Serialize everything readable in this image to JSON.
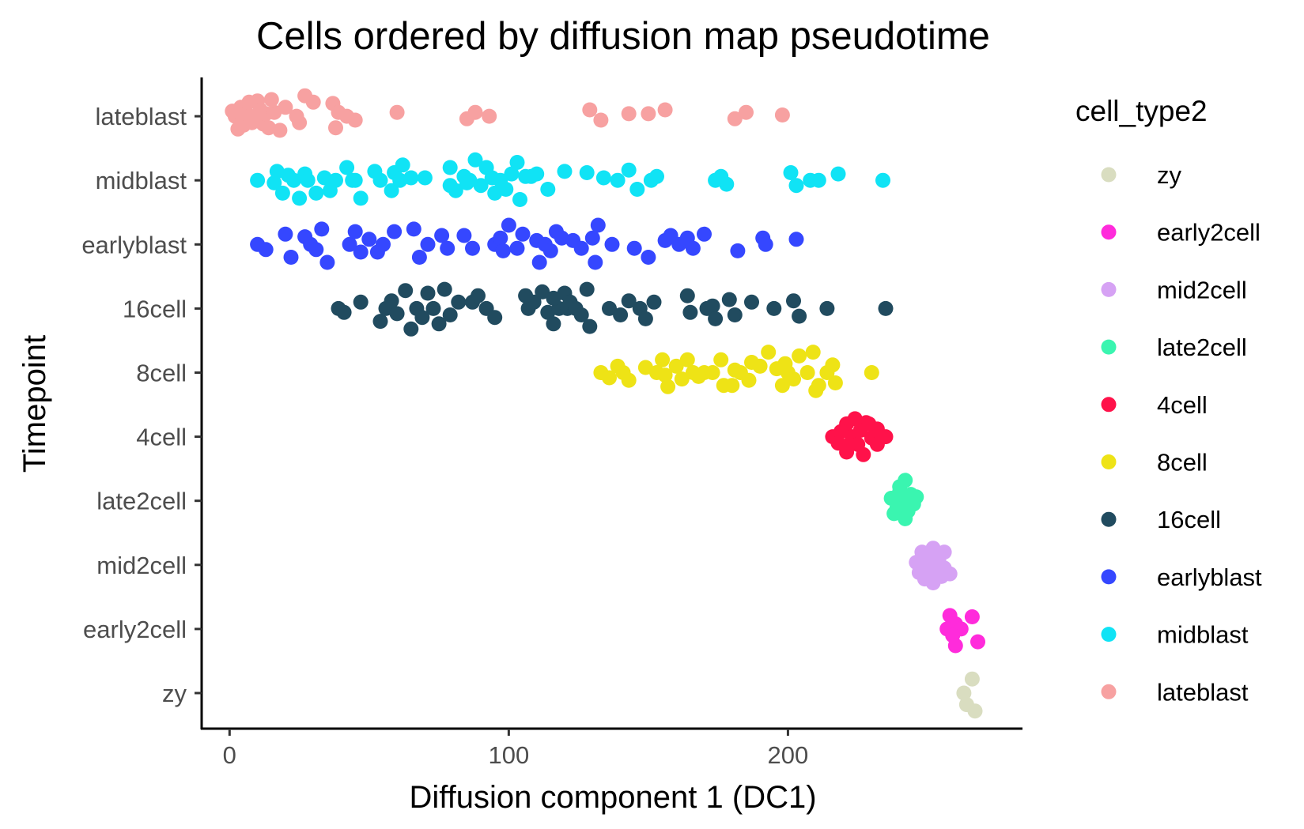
{
  "chart_data": {
    "type": "scatter",
    "title": "Cells ordered by diffusion map pseudotime",
    "xlabel": "Diffusion component 1 (DC1)",
    "ylabel": "Timepoint",
    "xlim": [
      -10,
      284
    ],
    "x_ticks": [
      0,
      100,
      200
    ],
    "categories": [
      "zy",
      "early2cell",
      "mid2cell",
      "late2cell",
      "4cell",
      "8cell",
      "16cell",
      "earlyblast",
      "midblast",
      "lateblast"
    ],
    "grid": false,
    "legend": {
      "title": "cell_type2",
      "position": "right",
      "entries": [
        "zy",
        "early2cell",
        "mid2cell",
        "late2cell",
        "4cell",
        "8cell",
        "16cell",
        "earlyblast",
        "midblast",
        "lateblast"
      ]
    },
    "series": [
      {
        "name": "zy",
        "color": "#D9DDC0",
        "category": "zy",
        "points": [
          [
            266,
            0.22
          ],
          [
            263,
            0.0
          ],
          [
            264,
            -0.18
          ],
          [
            267,
            -0.28
          ]
        ]
      },
      {
        "name": "early2cell",
        "color": "#FF2BDB",
        "category": "early2cell",
        "points": [
          [
            258,
            0.21
          ],
          [
            266,
            0.19
          ],
          [
            260,
            0.08
          ],
          [
            257,
            0.0
          ],
          [
            262,
            0.0
          ],
          [
            259,
            -0.1
          ],
          [
            268,
            -0.2
          ],
          [
            260,
            -0.26
          ]
        ]
      },
      {
        "name": "mid2cell",
        "color": "#D6A2F4",
        "category": "mid2cell",
        "points": [
          [
            248,
            0.2
          ],
          [
            252,
            0.26
          ],
          [
            256,
            0.2
          ],
          [
            250,
            0.12
          ],
          [
            254,
            0.08
          ],
          [
            246,
            0.04
          ],
          [
            249,
            0.0
          ],
          [
            253,
            -0.02
          ],
          [
            256,
            -0.05
          ],
          [
            247,
            -0.12
          ],
          [
            251,
            -0.1
          ],
          [
            255,
            -0.18
          ],
          [
            258,
            -0.14
          ],
          [
            249,
            -0.22
          ],
          [
            252,
            -0.28
          ]
        ]
      },
      {
        "name": "late2cell",
        "color": "#3AF5B0",
        "category": "late2cell",
        "points": [
          [
            242,
            0.32
          ],
          [
            240,
            0.22
          ],
          [
            244,
            0.1
          ],
          [
            237,
            0.04
          ],
          [
            241,
            0.0
          ],
          [
            245,
            -0.05
          ],
          [
            239,
            -0.12
          ],
          [
            243,
            -0.16
          ],
          [
            238,
            -0.2
          ],
          [
            242,
            -0.28
          ],
          [
            246,
            0.06
          ],
          [
            240,
            0.14
          ]
        ]
      },
      {
        "name": "4cell",
        "color": "#FF124A",
        "category": "4cell",
        "points": [
          [
            224,
            0.28
          ],
          [
            228,
            0.22
          ],
          [
            232,
            0.12
          ],
          [
            221,
            0.2
          ],
          [
            219,
            0.08
          ],
          [
            226,
            0.1
          ],
          [
            235,
            0.0
          ],
          [
            216,
            0.0
          ],
          [
            223,
            0.0
          ],
          [
            230,
            -0.02
          ],
          [
            218,
            -0.1
          ],
          [
            225,
            -0.12
          ],
          [
            232,
            -0.12
          ],
          [
            221,
            -0.24
          ],
          [
            227,
            -0.28
          ],
          [
            229,
            0.2
          ],
          [
            222,
            -0.12
          ]
        ]
      },
      {
        "name": "8cell",
        "color": "#EEE316",
        "category": "8cell",
        "points": [
          [
            133,
            0.0
          ],
          [
            136,
            -0.08
          ],
          [
            139,
            0.1
          ],
          [
            141,
            0.0
          ],
          [
            143,
            -0.12
          ],
          [
            149,
            0.08
          ],
          [
            153,
            0.0
          ],
          [
            155,
            0.2
          ],
          [
            156,
            -0.04
          ],
          [
            160,
            0.1
          ],
          [
            157,
            -0.22
          ],
          [
            162,
            -0.1
          ],
          [
            164,
            0.2
          ],
          [
            166,
            0.0
          ],
          [
            170,
            0.0
          ],
          [
            173,
            0.0
          ],
          [
            176,
            0.2
          ],
          [
            177,
            -0.2
          ],
          [
            181,
            0.04
          ],
          [
            183,
            0.0
          ],
          [
            186,
            -0.12
          ],
          [
            187,
            0.16
          ],
          [
            190,
            0.1
          ],
          [
            193,
            0.32
          ],
          [
            196,
            0.06
          ],
          [
            198,
            -0.2
          ],
          [
            200,
            0.0
          ],
          [
            202,
            -0.1
          ],
          [
            204,
            0.26
          ],
          [
            207,
            0.0
          ],
          [
            209,
            0.32
          ],
          [
            210,
            -0.28
          ],
          [
            211,
            -0.2
          ],
          [
            214,
            0.0
          ],
          [
            216,
            0.12
          ],
          [
            217,
            -0.16
          ],
          [
            230,
            0.0
          ],
          [
            168,
            -0.06
          ],
          [
            180,
            -0.2
          ],
          [
            199,
            0.14
          ]
        ]
      },
      {
        "name": "16cell",
        "color": "#214B5F",
        "category": "16cell",
        "points": [
          [
            39,
            0.0
          ],
          [
            41,
            -0.06
          ],
          [
            47,
            0.1
          ],
          [
            54,
            -0.2
          ],
          [
            56,
            0.0
          ],
          [
            58,
            0.12
          ],
          [
            60,
            -0.08
          ],
          [
            63,
            0.28
          ],
          [
            65,
            -0.32
          ],
          [
            67,
            0.0
          ],
          [
            69,
            -0.14
          ],
          [
            71,
            0.24
          ],
          [
            73,
            0.0
          ],
          [
            75,
            -0.24
          ],
          [
            77,
            0.3
          ],
          [
            79,
            -0.1
          ],
          [
            82,
            0.1
          ],
          [
            87,
            0.1
          ],
          [
            89,
            0.2
          ],
          [
            92,
            0.0
          ],
          [
            95,
            -0.14
          ],
          [
            107,
            0.0
          ],
          [
            109,
            0.1
          ],
          [
            112,
            0.26
          ],
          [
            114,
            -0.06
          ],
          [
            116,
            -0.24
          ],
          [
            118,
            0.0
          ],
          [
            120,
            0.24
          ],
          [
            121,
            0.0
          ],
          [
            122,
            0.1
          ],
          [
            124,
            0.0
          ],
          [
            126,
            -0.1
          ],
          [
            128,
            0.3
          ],
          [
            129,
            -0.28
          ],
          [
            136,
            0.0
          ],
          [
            140,
            -0.1
          ],
          [
            143,
            0.12
          ],
          [
            147,
            0.0
          ],
          [
            149,
            -0.16
          ],
          [
            152,
            0.1
          ],
          [
            164,
            0.2
          ],
          [
            165,
            -0.06
          ],
          [
            171,
            0.0
          ],
          [
            173,
            0.04
          ],
          [
            174,
            -0.16
          ],
          [
            179,
            0.14
          ],
          [
            181,
            -0.1
          ],
          [
            187,
            0.1
          ],
          [
            195,
            0.0
          ],
          [
            202,
            0.12
          ],
          [
            204,
            -0.12
          ],
          [
            214,
            0.0
          ],
          [
            235,
            0.0
          ],
          [
            116,
            0.16
          ],
          [
            106,
            0.2
          ]
        ]
      },
      {
        "name": "earlyblast",
        "color": "#3547FF",
        "category": "earlyblast",
        "points": [
          [
            10,
            0.0
          ],
          [
            13,
            -0.08
          ],
          [
            20,
            0.16
          ],
          [
            22,
            -0.2
          ],
          [
            27,
            0.12
          ],
          [
            29,
            0.0
          ],
          [
            31,
            -0.08
          ],
          [
            33,
            0.24
          ],
          [
            35,
            -0.28
          ],
          [
            43,
            0.0
          ],
          [
            45,
            0.2
          ],
          [
            47,
            -0.12
          ],
          [
            50,
            0.08
          ],
          [
            53,
            -0.12
          ],
          [
            55,
            0.0
          ],
          [
            66,
            0.24
          ],
          [
            68,
            -0.2
          ],
          [
            71,
            0.0
          ],
          [
            76,
            0.14
          ],
          [
            78,
            -0.06
          ],
          [
            84,
            0.14
          ],
          [
            87,
            -0.06
          ],
          [
            95,
            0.0
          ],
          [
            97,
            0.1
          ],
          [
            98,
            -0.1
          ],
          [
            103,
            -0.06
          ],
          [
            105,
            0.16
          ],
          [
            110,
            0.06
          ],
          [
            113,
            0.0
          ],
          [
            115,
            -0.1
          ],
          [
            111,
            -0.28
          ],
          [
            117,
            0.2
          ],
          [
            119,
            0.1
          ],
          [
            123,
            0.06
          ],
          [
            126,
            -0.06
          ],
          [
            130,
            0.1
          ],
          [
            131,
            -0.28
          ],
          [
            132,
            0.3
          ],
          [
            137,
            0.0
          ],
          [
            145,
            -0.06
          ],
          [
            156,
            0.06
          ],
          [
            158,
            0.14
          ],
          [
            161,
            0.0
          ],
          [
            164,
            0.1
          ],
          [
            166,
            -0.06
          ],
          [
            170,
            0.16
          ],
          [
            182,
            -0.1
          ],
          [
            191,
            0.1
          ],
          [
            192,
            0.0
          ],
          [
            203,
            0.08
          ],
          [
            59,
            0.2
          ],
          [
            100,
            0.3
          ],
          [
            150,
            -0.2
          ]
        ]
      },
      {
        "name": "midblast",
        "color": "#10E3F5",
        "category": "midblast",
        "points": [
          [
            10,
            0.0
          ],
          [
            16,
            -0.04
          ],
          [
            17,
            0.14
          ],
          [
            19,
            -0.2
          ],
          [
            21,
            0.08
          ],
          [
            23,
            0.0
          ],
          [
            25,
            -0.28
          ],
          [
            27,
            0.1
          ],
          [
            28,
            0.0
          ],
          [
            31,
            -0.2
          ],
          [
            34,
            0.04
          ],
          [
            36,
            -0.16
          ],
          [
            38,
            0.0
          ],
          [
            42,
            0.2
          ],
          [
            45,
            0.0
          ],
          [
            47,
            -0.28
          ],
          [
            52,
            0.14
          ],
          [
            54,
            0.0
          ],
          [
            58,
            -0.16
          ],
          [
            59,
            0.12
          ],
          [
            61,
            0.0
          ],
          [
            62,
            0.24
          ],
          [
            70,
            0.04
          ],
          [
            79,
            0.2
          ],
          [
            79,
            -0.08
          ],
          [
            81,
            -0.16
          ],
          [
            84,
            0.06
          ],
          [
            86,
            0.0
          ],
          [
            88,
            0.32
          ],
          [
            90,
            -0.08
          ],
          [
            92,
            0.2
          ],
          [
            94,
            0.04
          ],
          [
            95,
            -0.2
          ],
          [
            97,
            0.0
          ],
          [
            99,
            -0.14
          ],
          [
            101,
            0.1
          ],
          [
            103,
            0.28
          ],
          [
            104,
            -0.3
          ],
          [
            106,
            0.06
          ],
          [
            108,
            0.06
          ],
          [
            110,
            0.1
          ],
          [
            114,
            -0.14
          ],
          [
            120,
            0.14
          ],
          [
            128,
            0.12
          ],
          [
            134,
            0.04
          ],
          [
            139,
            0.0
          ],
          [
            143,
            0.16
          ],
          [
            146,
            -0.14
          ],
          [
            151,
            0.0
          ],
          [
            153,
            0.06
          ],
          [
            174,
            0.0
          ],
          [
            176,
            0.06
          ],
          [
            178,
            -0.06
          ],
          [
            201,
            0.12
          ],
          [
            203,
            -0.08
          ],
          [
            208,
            0.0
          ],
          [
            211,
            0.0
          ],
          [
            218,
            0.1
          ],
          [
            234,
            0.0
          ],
          [
            65,
            0.04
          ],
          [
            44,
            0.0
          ],
          [
            85,
            -0.04
          ]
        ]
      },
      {
        "name": "lateblast",
        "color": "#F7A1A1",
        "category": "lateblast",
        "points": [
          [
            2,
            0.0
          ],
          [
            4,
            0.14
          ],
          [
            5,
            -0.14
          ],
          [
            6,
            0.04
          ],
          [
            7,
            0.22
          ],
          [
            8,
            -0.1
          ],
          [
            9,
            0.0
          ],
          [
            10,
            0.24
          ],
          [
            11,
            0.1
          ],
          [
            12,
            -0.12
          ],
          [
            13,
            0.04
          ],
          [
            14,
            -0.18
          ],
          [
            16,
            0.06
          ],
          [
            18,
            -0.22
          ],
          [
            20,
            0.14
          ],
          [
            24,
            0.0
          ],
          [
            25,
            -0.1
          ],
          [
            27,
            0.32
          ],
          [
            30,
            0.22
          ],
          [
            37,
            0.2
          ],
          [
            38,
            -0.18
          ],
          [
            39,
            0.06
          ],
          [
            42,
            0.0
          ],
          [
            45,
            -0.06
          ],
          [
            60,
            0.06
          ],
          [
            85,
            -0.04
          ],
          [
            88,
            0.06
          ],
          [
            93,
            0.0
          ],
          [
            129,
            0.1
          ],
          [
            133,
            -0.06
          ],
          [
            143,
            0.04
          ],
          [
            150,
            0.04
          ],
          [
            156,
            0.1
          ],
          [
            181,
            -0.04
          ],
          [
            185,
            0.06
          ],
          [
            198,
            0.02
          ],
          [
            3,
            -0.2
          ],
          [
            1,
            0.08
          ],
          [
            15,
            0.26
          ]
        ]
      }
    ]
  }
}
